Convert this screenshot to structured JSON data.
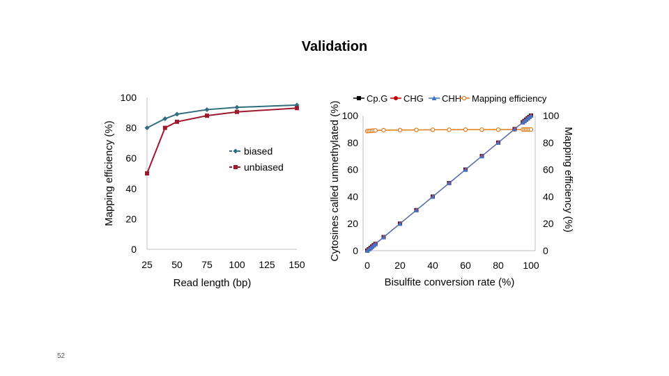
{
  "slide": {
    "title": "Validation",
    "page_number": "52"
  },
  "chart_data": [
    {
      "type": "line",
      "xlabel": "Read length (bp)",
      "ylabel": "Mapping efficiency (%)",
      "xlim": [
        25,
        150
      ],
      "ylim": [
        0,
        100
      ],
      "x_ticks": [
        "25",
        "50",
        "75",
        "100",
        "125",
        "150"
      ],
      "y_ticks": [
        "0",
        "20",
        "40",
        "60",
        "80",
        "100"
      ],
      "grid": false,
      "legend_position": "center-right",
      "series": [
        {
          "name": "biased",
          "color": "#2e6e7e",
          "marker": "diamond",
          "x": [
            25,
            40,
            50,
            75,
            100,
            150
          ],
          "y": [
            80,
            86,
            89,
            92,
            93.5,
            95
          ]
        },
        {
          "name": "unbiased",
          "color": "#a0182c",
          "marker": "square",
          "x": [
            25,
            40,
            50,
            75,
            100,
            150
          ],
          "y": [
            50,
            80,
            84,
            88,
            90.5,
            93
          ]
        }
      ]
    },
    {
      "type": "line",
      "xlabel": "Bisulfite conversion rate (%)",
      "ylabel": "Cytosines called unmethylated (%)",
      "y2label": "Mapping efficiency (%)",
      "xlim": [
        0,
        100
      ],
      "ylim": [
        0,
        100
      ],
      "y2lim": [
        0,
        100
      ],
      "x_ticks": [
        "0",
        "20",
        "40",
        "60",
        "80",
        "100"
      ],
      "y_ticks": [
        "0",
        "20",
        "40",
        "60",
        "80",
        "100"
      ],
      "y2_ticks": [
        "0",
        "20",
        "40",
        "60",
        "80",
        "100"
      ],
      "grid": false,
      "legend_position": "top",
      "series": [
        {
          "name": "Cp.G",
          "color": "#000000",
          "marker": "square",
          "axis": "left",
          "x": [
            0,
            1,
            2,
            3,
            4,
            5,
            10,
            20,
            30,
            40,
            50,
            60,
            70,
            80,
            90,
            95,
            96,
            97,
            98,
            99,
            100
          ],
          "y": [
            0,
            1,
            2,
            3,
            4,
            5,
            10,
            20,
            30,
            40,
            50,
            60,
            70,
            80,
            90,
            95,
            96,
            97,
            98,
            99,
            100
          ]
        },
        {
          "name": "CHG",
          "color": "#c00000",
          "marker": "circle",
          "axis": "left",
          "x": [
            0,
            1,
            2,
            3,
            4,
            5,
            10,
            20,
            30,
            40,
            50,
            60,
            70,
            80,
            90,
            95,
            96,
            97,
            98,
            99,
            100
          ],
          "y": [
            0,
            1,
            2,
            3,
            4,
            5,
            10,
            20,
            30,
            40,
            50,
            60,
            70,
            80,
            90,
            95,
            96,
            97,
            98,
            99,
            100
          ]
        },
        {
          "name": "CHH",
          "color": "#4472c4",
          "marker": "triangle",
          "axis": "left",
          "x": [
            0,
            1,
            2,
            3,
            4,
            5,
            10,
            20,
            30,
            40,
            50,
            60,
            70,
            80,
            90,
            95,
            96,
            97,
            98,
            99,
            100
          ],
          "y": [
            0,
            1,
            2,
            3,
            4,
            5,
            10,
            20,
            30,
            40,
            50,
            60,
            70,
            80,
            90,
            95,
            96,
            97,
            98,
            99,
            100
          ]
        },
        {
          "name": "Mapping efficiency",
          "color": "#e07b1a",
          "marker": "open-circle",
          "axis": "right",
          "x": [
            0,
            1,
            2,
            3,
            4,
            5,
            10,
            20,
            30,
            40,
            50,
            60,
            70,
            80,
            90,
            95,
            96,
            97,
            98,
            99,
            100
          ],
          "y": [
            88.5,
            88.6,
            88.7,
            88.8,
            88.9,
            89,
            89.2,
            89.3,
            89.4,
            89.5,
            89.5,
            89.6,
            89.6,
            89.6,
            89.7,
            89.7,
            89.7,
            89.7,
            89.7,
            89.7,
            89.7
          ]
        }
      ]
    }
  ]
}
